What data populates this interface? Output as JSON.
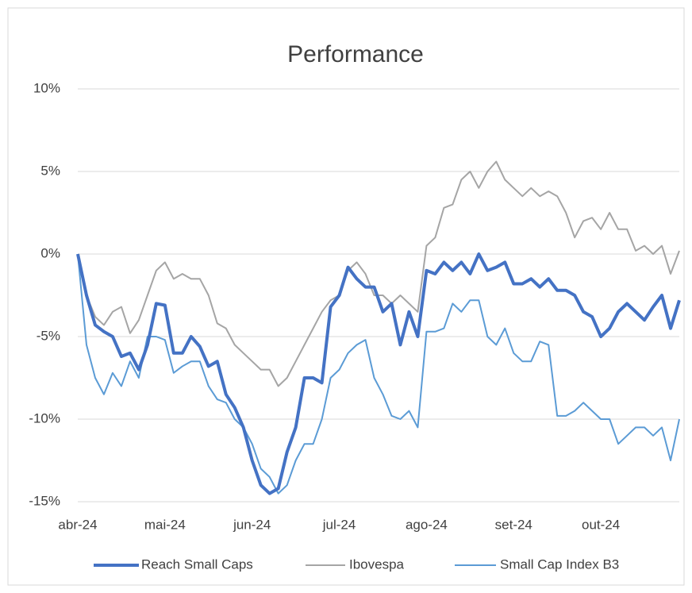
{
  "chart_data": {
    "type": "line",
    "title": "Performance",
    "categories": [
      "abr-24",
      null,
      null,
      null,
      null,
      null,
      null,
      null,
      null,
      null,
      "mai-24",
      null,
      null,
      null,
      null,
      null,
      null,
      null,
      null,
      null,
      "jun-24",
      null,
      null,
      null,
      null,
      null,
      null,
      null,
      null,
      null,
      "jul-24",
      null,
      null,
      null,
      null,
      null,
      null,
      null,
      null,
      null,
      "ago-24",
      null,
      null,
      null,
      null,
      null,
      null,
      null,
      null,
      null,
      "set-24",
      null,
      null,
      null,
      null,
      null,
      null,
      null,
      null,
      null,
      "out-24",
      null,
      null,
      null,
      null,
      null,
      null,
      null,
      null,
      null
    ],
    "series": [
      {
        "name": "Reach Small Caps",
        "color": "#4472c4",
        "values": [
          0,
          -2.5,
          -4.3,
          -4.7,
          -5.0,
          -6.2,
          -6.0,
          -7.0,
          -5.5,
          -3.0,
          -3.1,
          -6.0,
          -6.0,
          -5.0,
          -5.6,
          -6.8,
          -6.5,
          -8.5,
          -9.3,
          -10.5,
          -12.5,
          -14.0,
          -14.5,
          -14.2,
          -12.0,
          -10.5,
          -7.5,
          -7.5,
          -7.8,
          -3.2,
          -2.5,
          -0.8,
          -1.5,
          -2.0,
          -2.0,
          -3.5,
          -3.0,
          -5.5,
          -3.5,
          -5.0,
          -1.0,
          -1.2,
          -0.5,
          -1.0,
          -0.5,
          -1.2,
          0,
          -1.0,
          -0.8,
          -0.5,
          -1.8,
          -1.8,
          -1.5,
          -2.0,
          -1.5,
          -2.2,
          -2.2,
          -2.5,
          -3.5,
          -3.8,
          -5.0,
          -4.5,
          -3.5,
          -3.0,
          -3.5,
          -4.0,
          -3.2,
          -2.5,
          -4.5,
          -2.8
        ]
      },
      {
        "name": "Ibovespa",
        "color": "#a5a5a5",
        "values": [
          0,
          -2.5,
          -3.8,
          -4.3,
          -3.5,
          -3.2,
          -4.8,
          -4.0,
          -2.5,
          -1.0,
          -0.5,
          -1.5,
          -1.2,
          -1.5,
          -1.5,
          -2.5,
          -4.2,
          -4.5,
          -5.5,
          -6.0,
          -6.5,
          -7.0,
          -7.0,
          -8.0,
          -7.5,
          -6.5,
          -5.5,
          -4.5,
          -3.5,
          -2.8,
          -2.5,
          -1.0,
          -0.5,
          -1.2,
          -2.5,
          -2.5,
          -3.0,
          -2.5,
          -3.0,
          -3.5,
          0.5,
          1.0,
          2.8,
          3.0,
          4.5,
          5.0,
          4.0,
          5.0,
          5.6,
          4.5,
          4.0,
          3.5,
          4.0,
          3.5,
          3.8,
          3.5,
          2.5,
          1.0,
          2.0,
          2.2,
          1.5,
          2.5,
          1.5,
          1.5,
          0.2,
          0.5,
          0,
          0.5,
          -1.2,
          0.2
        ]
      },
      {
        "name": "Small Cap Index B3",
        "color": "#5b9bd5",
        "values": [
          0,
          -5.5,
          -7.5,
          -8.5,
          -7.2,
          -8.0,
          -6.5,
          -7.5,
          -5.0,
          -5.0,
          -5.2,
          -7.2,
          -6.8,
          -6.5,
          -6.5,
          -8.0,
          -8.8,
          -9.0,
          -10.0,
          -10.5,
          -11.5,
          -13.0,
          -13.5,
          -14.5,
          -14.0,
          -12.5,
          -11.5,
          -11.5,
          -10.0,
          -7.5,
          -7.0,
          -6.0,
          -5.5,
          -5.2,
          -7.5,
          -8.5,
          -9.8,
          -10.0,
          -9.5,
          -10.5,
          -4.7,
          -4.7,
          -4.5,
          -3.0,
          -3.5,
          -2.8,
          -2.8,
          -5.0,
          -5.5,
          -4.5,
          -6.0,
          -6.5,
          -6.5,
          -5.3,
          -5.5,
          -9.8,
          -9.8,
          -9.5,
          -9.0,
          -9.5,
          -10.0,
          -10.0,
          -11.5,
          -11.0,
          -10.5,
          -10.5,
          -11.0,
          -10.5,
          -12.5,
          -10.0
        ]
      }
    ],
    "ylim": [
      -15,
      10
    ],
    "yticks": [
      {
        "value": 10,
        "label": "10%"
      },
      {
        "value": 5,
        "label": "5%"
      },
      {
        "value": 0,
        "label": "0%"
      },
      {
        "value": -5,
        "label": "-5%"
      },
      {
        "value": -10,
        "label": "-10%"
      },
      {
        "value": -15,
        "label": "-15%"
      }
    ],
    "grid": true,
    "legend": "bottom"
  }
}
